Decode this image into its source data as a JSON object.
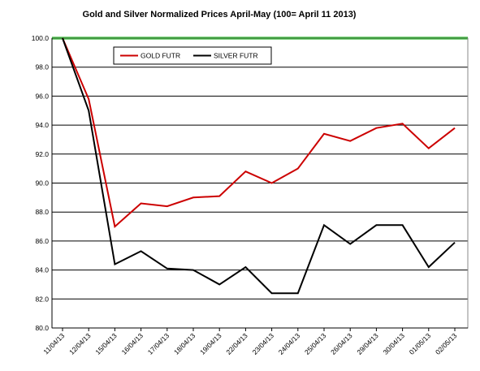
{
  "chart_data": {
    "type": "line",
    "title": "Gold and Silver Normalized Prices  April-May (100= April 11 2013)",
    "xlabel": "",
    "ylabel": "",
    "ylim": [
      80,
      100
    ],
    "yticks": [
      "80.0",
      "82.0",
      "84.0",
      "86.0",
      "88.0",
      "90.0",
      "92.0",
      "94.0",
      "96.0",
      "98.0",
      "100.0"
    ],
    "categories": [
      "11/04/13",
      "12/04/13",
      "15/04/13",
      "16/04/13",
      "17/04/13",
      "18/04/13",
      "19/04/13",
      "22/04/13",
      "23/04/13",
      "24/04/13",
      "25/04/13",
      "26/04/13",
      "29/04/13",
      "30/04/13",
      "01/05/13",
      "02/05/13"
    ],
    "series": [
      {
        "name": "GOLD  FUTR",
        "color": "#cc0000",
        "values": [
          100.0,
          95.8,
          87.0,
          88.6,
          88.4,
          89.0,
          89.1,
          90.8,
          90.0,
          91.0,
          93.4,
          92.9,
          93.8,
          94.1,
          92.4,
          93.8
        ]
      },
      {
        "name": "SILVER  FUTR",
        "color": "#000000",
        "values": [
          100.0,
          95.0,
          84.4,
          85.3,
          84.1,
          84.0,
          83.0,
          84.2,
          82.4,
          82.4,
          87.1,
          85.8,
          87.1,
          87.1,
          84.2,
          85.9
        ]
      }
    ],
    "reference_line": {
      "value": 100,
      "color": "#00aa00"
    },
    "grid": true,
    "legend": "top-left"
  }
}
